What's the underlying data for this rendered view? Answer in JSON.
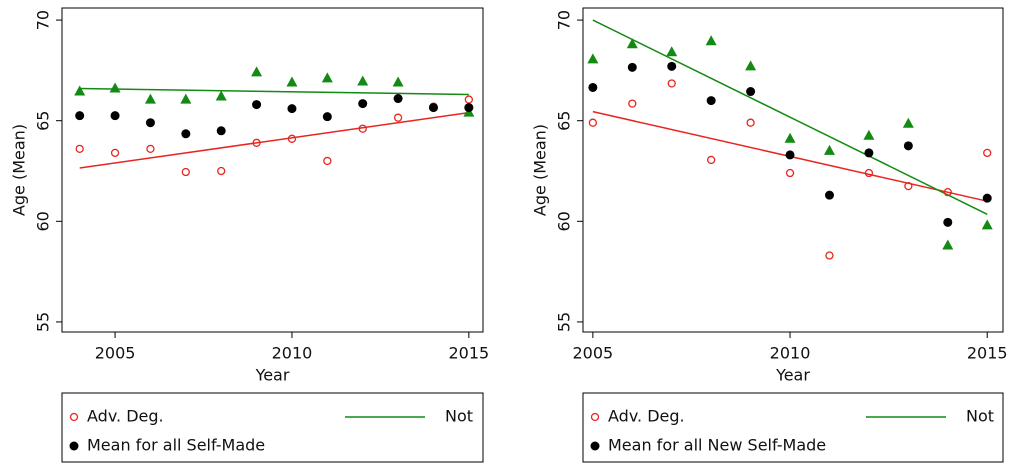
{
  "chart_data": [
    {
      "type": "scatter",
      "x_label": "Year",
      "y_label": "Age (Mean)",
      "xlim": [
        2003.5,
        2015.4
      ],
      "ylim": [
        54.5,
        70.6
      ],
      "xticks": [
        2005,
        2010,
        2015
      ],
      "yticks": [
        55,
        60,
        65,
        70
      ],
      "x": [
        2004,
        2005,
        2006,
        2007,
        2008,
        2009,
        2010,
        2011,
        2012,
        2013,
        2014,
        2015
      ],
      "fit_x": [
        2004,
        2015
      ],
      "series": [
        {
          "name": "Adv. Deg.",
          "color": "#e8251f",
          "marker": "circle-open",
          "values": [
            63.6,
            63.4,
            63.6,
            62.45,
            62.5,
            63.9,
            64.1,
            63.0,
            64.6,
            65.15,
            65.7,
            66.05
          ],
          "fit": [
            62.65,
            65.4
          ]
        },
        {
          "name": "Not",
          "color": "#138a13",
          "marker": "triangle",
          "legend_symbol": "line",
          "values": [
            66.45,
            66.6,
            66.05,
            66.05,
            66.2,
            67.4,
            66.9,
            67.1,
            66.95,
            66.9,
            null,
            65.4
          ],
          "fit": [
            66.6,
            66.3
          ]
        },
        {
          "name": "Mean for all Self-Made",
          "color": "#000000",
          "marker": "dot",
          "values": [
            65.25,
            65.25,
            64.9,
            64.35,
            64.5,
            65.8,
            65.6,
            65.2,
            65.85,
            66.1,
            65.65,
            65.65
          ]
        }
      ]
    },
    {
      "type": "scatter",
      "x_label": "Year",
      "y_label": "Age (Mean)",
      "xlim": [
        2004.75,
        2015.4
      ],
      "ylim": [
        54.5,
        70.6
      ],
      "xticks": [
        2005,
        2010,
        2015
      ],
      "yticks": [
        55,
        60,
        65,
        70
      ],
      "x": [
        2005,
        2006,
        2007,
        2008,
        2009,
        2010,
        2011,
        2012,
        2013,
        2014,
        2015
      ],
      "fit_x": [
        2005,
        2015
      ],
      "series": [
        {
          "name": "Adv. Deg.",
          "color": "#e8251f",
          "marker": "circle-open",
          "values": [
            64.9,
            65.85,
            66.85,
            63.05,
            64.9,
            62.4,
            58.3,
            62.4,
            61.75,
            61.45,
            63.4
          ],
          "fit": [
            65.45,
            61.0
          ]
        },
        {
          "name": "Not",
          "color": "#138a13",
          "marker": "triangle",
          "legend_symbol": "line",
          "values": [
            68.05,
            68.8,
            68.4,
            68.95,
            67.7,
            64.1,
            63.5,
            64.25,
            64.85,
            58.8,
            59.8
          ],
          "fit": [
            70.0,
            60.35
          ]
        },
        {
          "name": "Mean for all New Self-Made",
          "color": "#000000",
          "marker": "dot",
          "values": [
            66.65,
            67.65,
            67.7,
            66.0,
            66.45,
            63.3,
            61.3,
            63.4,
            63.75,
            59.95,
            61.15
          ]
        }
      ]
    }
  ]
}
